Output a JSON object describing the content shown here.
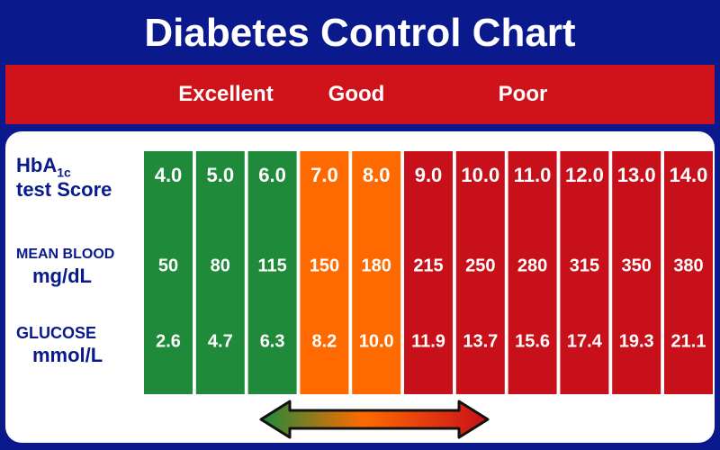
{
  "header": {
    "title": "Diabetes Control Chart",
    "ratings": [
      "Excellent",
      "Good",
      "Poor"
    ]
  },
  "row_labels": {
    "hba1c": "HbA",
    "hba1c_sub": "1c",
    "test_score": "test Score",
    "mean_blood": "MEAN BLOOD",
    "mg_dl": "mg/dL",
    "glucose": "GLUCOSE",
    "mmol_l": "mmol/L"
  },
  "colors": {
    "navy": "#0a1a8c",
    "header_red": "#d0121a",
    "excellent": "#1e8a3a",
    "good": "#ff6a00",
    "poor": "#c8101a"
  },
  "chart_data": {
    "type": "table",
    "title": "Diabetes Control Chart",
    "columns": [
      {
        "hba1c": "4.0",
        "mg_dl": "50",
        "mmol_l": "2.6",
        "rating": "Excellent"
      },
      {
        "hba1c": "5.0",
        "mg_dl": "80",
        "mmol_l": "4.7",
        "rating": "Excellent"
      },
      {
        "hba1c": "6.0",
        "mg_dl": "115",
        "mmol_l": "6.3",
        "rating": "Excellent"
      },
      {
        "hba1c": "7.0",
        "mg_dl": "150",
        "mmol_l": "8.2",
        "rating": "Good"
      },
      {
        "hba1c": "8.0",
        "mg_dl": "180",
        "mmol_l": "10.0",
        "rating": "Good"
      },
      {
        "hba1c": "9.0",
        "mg_dl": "215",
        "mmol_l": "11.9",
        "rating": "Poor"
      },
      {
        "hba1c": "10.0",
        "mg_dl": "250",
        "mmol_l": "13.7",
        "rating": "Poor"
      },
      {
        "hba1c": "11.0",
        "mg_dl": "280",
        "mmol_l": "15.6",
        "rating": "Poor"
      },
      {
        "hba1c": "12.0",
        "mg_dl": "315",
        "mmol_l": "17.4",
        "rating": "Poor"
      },
      {
        "hba1c": "13.0",
        "mg_dl": "350",
        "mmol_l": "19.3",
        "rating": "Poor"
      },
      {
        "hba1c": "14.0",
        "mg_dl": "380",
        "mmol_l": "21.1",
        "rating": "Poor"
      }
    ]
  }
}
